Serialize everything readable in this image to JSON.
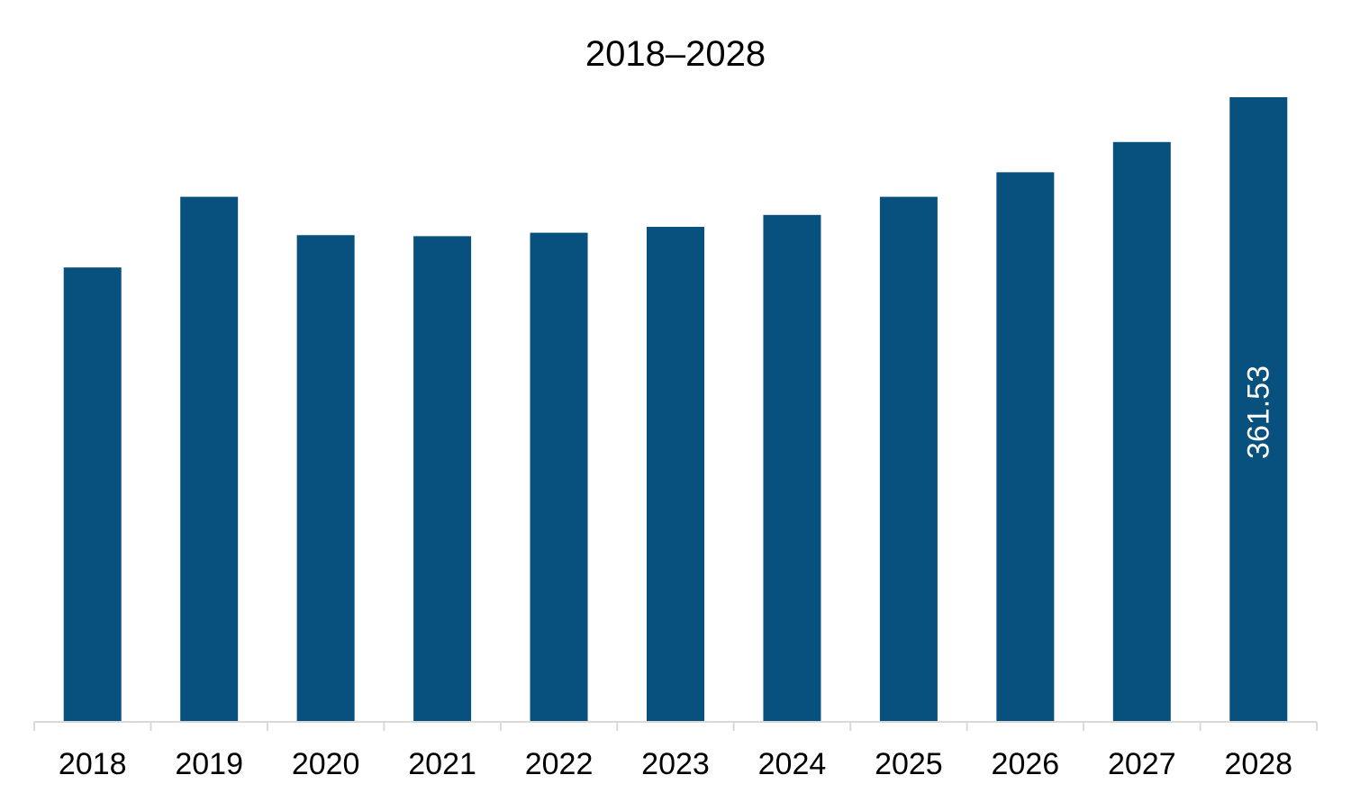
{
  "chart_data": {
    "type": "bar",
    "title": "2018–2028",
    "xlabel": "",
    "ylabel": "",
    "categories": [
      "2018",
      "2019",
      "2020",
      "2021",
      "2022",
      "2023",
      "2024",
      "2025",
      "2026",
      "2027",
      "2028"
    ],
    "values": [
      263.0,
      303.9,
      281.7,
      281.1,
      283.1,
      286.5,
      293.4,
      303.9,
      318.1,
      335.6,
      361.53
    ],
    "data_labels": [
      {
        "category": "2028",
        "text": "361.53"
      }
    ],
    "ylim": [
      0,
      361.53
    ],
    "grid": false,
    "legend": "none",
    "colors": {
      "bar": "#08507d",
      "axis": "#d9d9d9",
      "label": "#ffffff"
    }
  }
}
